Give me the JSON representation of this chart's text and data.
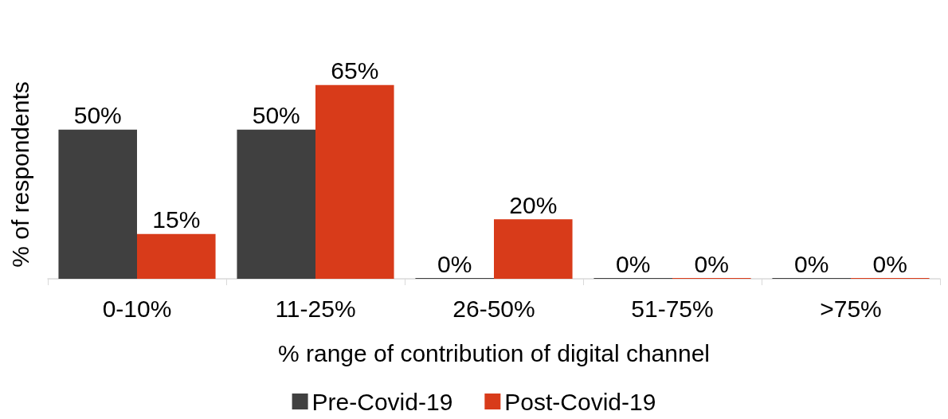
{
  "chart_data": {
    "type": "bar",
    "xlabel": "% range of contribution of digital channel",
    "ylabel": "% of respondents",
    "categories": [
      "0-10%",
      "11-25%",
      "26-50%",
      "51-75%",
      ">75%"
    ],
    "series": [
      {
        "name": "Pre-Covid-19",
        "color": "#404040",
        "values": [
          50,
          50,
          0,
          0,
          0
        ],
        "value_labels": [
          "50%",
          "50%",
          "0%",
          "0%",
          "0%"
        ]
      },
      {
        "name": "Post-Covid-19",
        "color": "#d83b1a",
        "values": [
          15,
          65,
          20,
          0,
          0
        ],
        "value_labels": [
          "15%",
          "65%",
          "20%",
          "0%",
          "0%"
        ]
      }
    ],
    "legend": "bottom",
    "grid": false
  }
}
